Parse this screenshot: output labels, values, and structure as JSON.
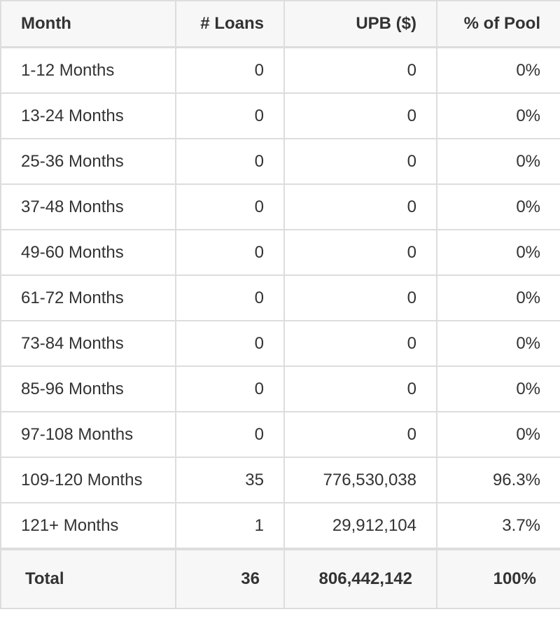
{
  "table": {
    "headers": [
      "Month",
      "# Loans",
      "UPB ($)",
      "% of Pool"
    ],
    "rows": [
      {
        "month": "1-12 Months",
        "loans": "0",
        "upb": "0",
        "pct": "0%"
      },
      {
        "month": "13-24 Months",
        "loans": "0",
        "upb": "0",
        "pct": "0%"
      },
      {
        "month": "25-36 Months",
        "loans": "0",
        "upb": "0",
        "pct": "0%"
      },
      {
        "month": "37-48 Months",
        "loans": "0",
        "upb": "0",
        "pct": "0%"
      },
      {
        "month": "49-60 Months",
        "loans": "0",
        "upb": "0",
        "pct": "0%"
      },
      {
        "month": "61-72 Months",
        "loans": "0",
        "upb": "0",
        "pct": "0%"
      },
      {
        "month": "73-84 Months",
        "loans": "0",
        "upb": "0",
        "pct": "0%"
      },
      {
        "month": "85-96 Months",
        "loans": "0",
        "upb": "0",
        "pct": "0%"
      },
      {
        "month": "97-108 Months",
        "loans": "0",
        "upb": "0",
        "pct": "0%"
      },
      {
        "month": "109-120 Months",
        "loans": "35",
        "upb": "776,530,038",
        "pct": "96.3%"
      },
      {
        "month": "121+ Months",
        "loans": "1",
        "upb": "29,912,104",
        "pct": "3.7%"
      }
    ],
    "total": {
      "label": "Total",
      "loans": "36",
      "upb": "806,442,142",
      "pct": "100%"
    }
  }
}
